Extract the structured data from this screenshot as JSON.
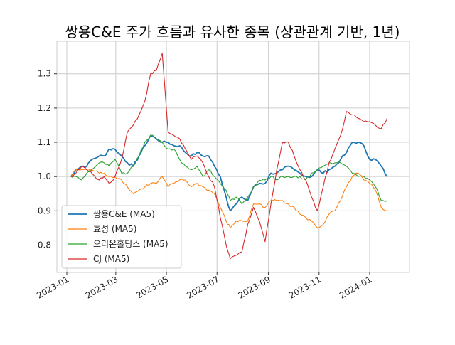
{
  "chart_data": {
    "type": "line",
    "title": "쌍용C&E 주가 흐름과 유사한 종목 (상관관계 기반, 1년)",
    "xlabel": "",
    "ylabel": "",
    "x_axis": "date",
    "xlim": [
      "2022-12-20",
      "2024-02-18"
    ],
    "ylim": [
      0.72,
      1.395
    ],
    "grid": true,
    "legend_position": "lower-left",
    "x_ticks": [
      "2023-01",
      "2023-03",
      "2023-05",
      "2023-07",
      "2023-09",
      "2023-11",
      "2024-01"
    ],
    "x_tick_dates": [
      "2023-01-01",
      "2023-03-01",
      "2023-05-01",
      "2023-07-01",
      "2023-09-01",
      "2023-11-01",
      "2024-01-01"
    ],
    "y_ticks": [
      0.8,
      0.9,
      1.0,
      1.1,
      1.2,
      1.3
    ],
    "y_tick_labels": [
      "0.8",
      "0.9",
      "1.0",
      "1.1",
      "1.2",
      "1.3"
    ],
    "series": [
      {
        "name": "쌍용C&E (MA5)",
        "color": "#1f77b4",
        "points": [
          [
            "2023-01-06",
            1.0
          ],
          [
            "2023-01-12",
            1.02
          ],
          [
            "2023-01-19",
            1.03
          ],
          [
            "2023-01-25",
            1.03
          ],
          [
            "2023-01-31",
            1.05
          ],
          [
            "2023-02-09",
            1.06
          ],
          [
            "2023-02-15",
            1.06
          ],
          [
            "2023-02-21",
            1.08
          ],
          [
            "2023-02-28",
            1.08
          ],
          [
            "2023-03-08",
            1.06
          ],
          [
            "2023-03-15",
            1.04
          ],
          [
            "2023-03-22",
            1.03
          ],
          [
            "2023-03-29",
            1.06
          ],
          [
            "2023-04-05",
            1.09
          ],
          [
            "2023-04-12",
            1.12
          ],
          [
            "2023-04-19",
            1.11
          ],
          [
            "2023-04-26",
            1.1
          ],
          [
            "2023-05-03",
            1.1
          ],
          [
            "2023-05-10",
            1.09
          ],
          [
            "2023-05-17",
            1.09
          ],
          [
            "2023-05-24",
            1.07
          ],
          [
            "2023-05-31",
            1.06
          ],
          [
            "2023-06-07",
            1.07
          ],
          [
            "2023-06-14",
            1.06
          ],
          [
            "2023-06-21",
            1.06
          ],
          [
            "2023-06-28",
            1.03
          ],
          [
            "2023-07-05",
            1.0
          ],
          [
            "2023-07-12",
            0.94
          ],
          [
            "2023-07-17",
            0.9
          ],
          [
            "2023-07-24",
            0.92
          ],
          [
            "2023-07-31",
            0.94
          ],
          [
            "2023-08-07",
            0.93
          ],
          [
            "2023-08-14",
            0.97
          ],
          [
            "2023-08-21",
            0.98
          ],
          [
            "2023-08-28",
            0.98
          ],
          [
            "2023-09-04",
            1.01
          ],
          [
            "2023-09-11",
            1.01
          ],
          [
            "2023-09-18",
            1.02
          ],
          [
            "2023-09-25",
            1.03
          ],
          [
            "2023-10-02",
            1.02
          ],
          [
            "2023-10-09",
            1.01
          ],
          [
            "2023-10-16",
            1.0
          ],
          [
            "2023-10-23",
            1.0
          ],
          [
            "2023-10-30",
            1.02
          ],
          [
            "2023-11-06",
            1.01
          ],
          [
            "2023-11-13",
            1.02
          ],
          [
            "2023-11-20",
            1.03
          ],
          [
            "2023-11-27",
            1.05
          ],
          [
            "2023-12-04",
            1.07
          ],
          [
            "2023-12-11",
            1.1
          ],
          [
            "2023-12-18",
            1.1
          ],
          [
            "2023-12-25",
            1.09
          ],
          [
            "2024-01-01",
            1.05
          ],
          [
            "2024-01-08",
            1.05
          ],
          [
            "2024-01-15",
            1.03
          ],
          [
            "2024-01-22",
            1.0
          ]
        ]
      },
      {
        "name": "효성 (MA5)",
        "color": "#ff7f0e",
        "points": [
          [
            "2023-01-06",
            1.0
          ],
          [
            "2023-01-12",
            1.02
          ],
          [
            "2023-01-19",
            1.02
          ],
          [
            "2023-01-25",
            1.02
          ],
          [
            "2023-01-31",
            1.02
          ],
          [
            "2023-02-09",
            1.01
          ],
          [
            "2023-02-15",
            1.01
          ],
          [
            "2023-02-21",
            1.0
          ],
          [
            "2023-02-28",
            1.0
          ],
          [
            "2023-03-08",
            0.99
          ],
          [
            "2023-03-15",
            0.97
          ],
          [
            "2023-03-22",
            0.95
          ],
          [
            "2023-03-29",
            0.96
          ],
          [
            "2023-04-05",
            0.97
          ],
          [
            "2023-04-12",
            0.98
          ],
          [
            "2023-04-19",
            0.98
          ],
          [
            "2023-04-26",
            1.0
          ],
          [
            "2023-05-03",
            0.97
          ],
          [
            "2023-05-10",
            0.98
          ],
          [
            "2023-05-17",
            0.99
          ],
          [
            "2023-05-24",
            0.99
          ],
          [
            "2023-05-31",
            0.97
          ],
          [
            "2023-06-07",
            0.98
          ],
          [
            "2023-06-14",
            0.97
          ],
          [
            "2023-06-21",
            0.96
          ],
          [
            "2023-06-28",
            0.95
          ],
          [
            "2023-07-05",
            0.91
          ],
          [
            "2023-07-12",
            0.87
          ],
          [
            "2023-07-17",
            0.85
          ],
          [
            "2023-07-24",
            0.87
          ],
          [
            "2023-07-31",
            0.87
          ],
          [
            "2023-08-07",
            0.87
          ],
          [
            "2023-08-14",
            0.92
          ],
          [
            "2023-08-21",
            0.92
          ],
          [
            "2023-08-28",
            0.91
          ],
          [
            "2023-09-04",
            0.93
          ],
          [
            "2023-09-11",
            0.93
          ],
          [
            "2023-09-18",
            0.93
          ],
          [
            "2023-09-25",
            0.92
          ],
          [
            "2023-10-02",
            0.91
          ],
          [
            "2023-10-09",
            0.89
          ],
          [
            "2023-10-16",
            0.88
          ],
          [
            "2023-10-23",
            0.87
          ],
          [
            "2023-10-30",
            0.85
          ],
          [
            "2023-11-06",
            0.86
          ],
          [
            "2023-11-13",
            0.89
          ],
          [
            "2023-11-20",
            0.9
          ],
          [
            "2023-11-27",
            0.93
          ],
          [
            "2023-12-04",
            0.97
          ],
          [
            "2023-12-11",
            1.0
          ],
          [
            "2023-12-18",
            1.01
          ],
          [
            "2023-12-25",
            0.99
          ],
          [
            "2024-01-01",
            0.98
          ],
          [
            "2024-01-08",
            0.96
          ],
          [
            "2024-01-15",
            0.91
          ],
          [
            "2024-01-22",
            0.9
          ]
        ]
      },
      {
        "name": "오리온홀딩스 (MA5)",
        "color": "#2ca02c",
        "points": [
          [
            "2023-01-06",
            1.0
          ],
          [
            "2023-01-12",
            1.0
          ],
          [
            "2023-01-19",
            0.99
          ],
          [
            "2023-01-25",
            1.01
          ],
          [
            "2023-01-31",
            1.02
          ],
          [
            "2023-02-09",
            1.04
          ],
          [
            "2023-02-15",
            1.04
          ],
          [
            "2023-02-21",
            1.03
          ],
          [
            "2023-02-28",
            1.05
          ],
          [
            "2023-03-08",
            1.01
          ],
          [
            "2023-03-15",
            1.01
          ],
          [
            "2023-03-22",
            1.03
          ],
          [
            "2023-03-29",
            1.06
          ],
          [
            "2023-04-05",
            1.1
          ],
          [
            "2023-04-12",
            1.12
          ],
          [
            "2023-04-19",
            1.11
          ],
          [
            "2023-04-26",
            1.1
          ],
          [
            "2023-05-03",
            1.08
          ],
          [
            "2023-05-10",
            1.08
          ],
          [
            "2023-05-17",
            1.05
          ],
          [
            "2023-05-24",
            1.03
          ],
          [
            "2023-05-31",
            1.02
          ],
          [
            "2023-06-07",
            1.03
          ],
          [
            "2023-06-14",
            1.0
          ],
          [
            "2023-06-21",
            1.02
          ],
          [
            "2023-06-28",
            1.0
          ],
          [
            "2023-07-05",
            0.98
          ],
          [
            "2023-07-12",
            0.96
          ],
          [
            "2023-07-17",
            0.93
          ],
          [
            "2023-07-24",
            0.94
          ],
          [
            "2023-07-31",
            0.92
          ],
          [
            "2023-08-07",
            0.94
          ],
          [
            "2023-08-14",
            0.97
          ],
          [
            "2023-08-21",
            0.99
          ],
          [
            "2023-08-28",
            0.99
          ],
          [
            "2023-09-04",
            1.0
          ],
          [
            "2023-09-11",
            0.99
          ],
          [
            "2023-09-18",
            1.0
          ],
          [
            "2023-09-25",
            1.0
          ],
          [
            "2023-10-02",
            1.0
          ],
          [
            "2023-10-09",
            1.0
          ],
          [
            "2023-10-16",
            0.99
          ],
          [
            "2023-10-23",
            1.01
          ],
          [
            "2023-10-30",
            1.02
          ],
          [
            "2023-11-06",
            1.03
          ],
          [
            "2023-11-13",
            1.04
          ],
          [
            "2023-11-20",
            1.04
          ],
          [
            "2023-11-27",
            1.04
          ],
          [
            "2023-12-04",
            1.03
          ],
          [
            "2023-12-11",
            1.01
          ],
          [
            "2023-12-18",
            1.0
          ],
          [
            "2023-12-25",
            1.0
          ],
          [
            "2024-01-01",
            0.99
          ],
          [
            "2024-01-08",
            0.97
          ],
          [
            "2024-01-15",
            0.93
          ],
          [
            "2024-01-22",
            0.93
          ]
        ]
      },
      {
        "name": "CJ (MA5)",
        "color": "#d62728",
        "points": [
          [
            "2023-01-06",
            1.0
          ],
          [
            "2023-01-12",
            1.01
          ],
          [
            "2023-01-19",
            1.03
          ],
          [
            "2023-01-25",
            1.02
          ],
          [
            "2023-01-31",
            1.01
          ],
          [
            "2023-02-09",
            0.99
          ],
          [
            "2023-02-15",
            1.0
          ],
          [
            "2023-02-21",
            0.98
          ],
          [
            "2023-02-28",
            1.0
          ],
          [
            "2023-03-08",
            1.05
          ],
          [
            "2023-03-15",
            1.13
          ],
          [
            "2023-03-22",
            1.15
          ],
          [
            "2023-03-29",
            1.18
          ],
          [
            "2023-04-05",
            1.22
          ],
          [
            "2023-04-12",
            1.3
          ],
          [
            "2023-04-19",
            1.31
          ],
          [
            "2023-04-26",
            1.36
          ],
          [
            "2023-05-03",
            1.13
          ],
          [
            "2023-05-10",
            1.12
          ],
          [
            "2023-05-17",
            1.11
          ],
          [
            "2023-05-24",
            1.08
          ],
          [
            "2023-05-31",
            1.05
          ],
          [
            "2023-06-07",
            1.06
          ],
          [
            "2023-06-14",
            1.04
          ],
          [
            "2023-06-21",
            1.0
          ],
          [
            "2023-06-28",
            0.97
          ],
          [
            "2023-07-05",
            0.88
          ],
          [
            "2023-07-12",
            0.8
          ],
          [
            "2023-07-17",
            0.76
          ],
          [
            "2023-07-24",
            0.77
          ],
          [
            "2023-07-31",
            0.78
          ],
          [
            "2023-08-07",
            0.86
          ],
          [
            "2023-08-14",
            0.91
          ],
          [
            "2023-08-21",
            0.87
          ],
          [
            "2023-08-28",
            0.81
          ],
          [
            "2023-09-04",
            0.92
          ],
          [
            "2023-09-11",
            1.02
          ],
          [
            "2023-09-18",
            1.1
          ],
          [
            "2023-09-25",
            1.1
          ],
          [
            "2023-10-02",
            1.06
          ],
          [
            "2023-10-09",
            1.02
          ],
          [
            "2023-10-16",
            0.99
          ],
          [
            "2023-10-23",
            0.94
          ],
          [
            "2023-10-30",
            0.9
          ],
          [
            "2023-11-06",
            0.97
          ],
          [
            "2023-11-13",
            1.04
          ],
          [
            "2023-11-20",
            1.08
          ],
          [
            "2023-11-27",
            1.12
          ],
          [
            "2023-12-04",
            1.19
          ],
          [
            "2023-12-11",
            1.18
          ],
          [
            "2023-12-18",
            1.17
          ],
          [
            "2023-12-25",
            1.16
          ],
          [
            "2024-01-01",
            1.16
          ],
          [
            "2024-01-08",
            1.15
          ],
          [
            "2024-01-15",
            1.14
          ],
          [
            "2024-01-22",
            1.17
          ]
        ]
      }
    ]
  }
}
